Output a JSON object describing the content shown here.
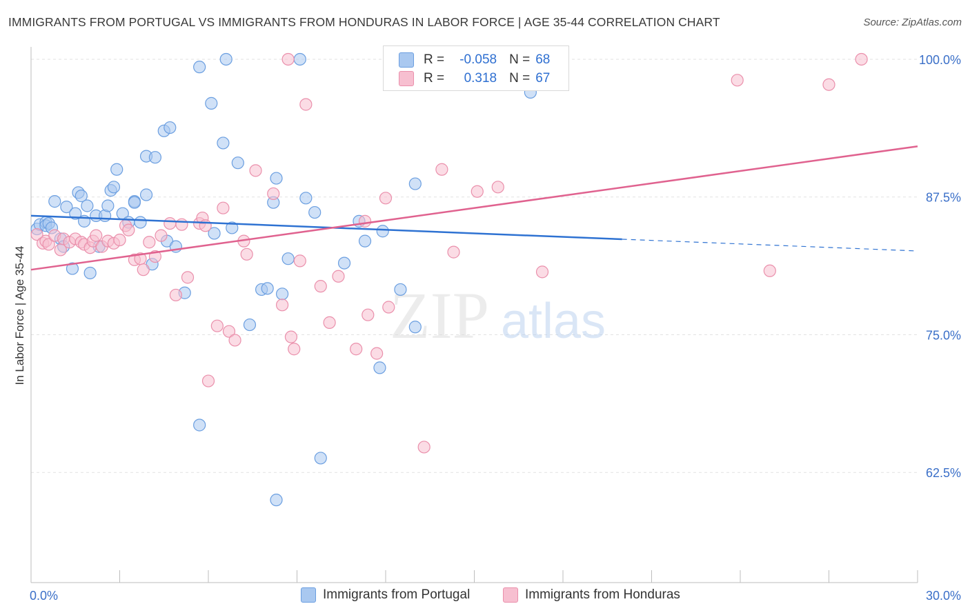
{
  "title": "IMMIGRANTS FROM PORTUGAL VS IMMIGRANTS FROM HONDURAS IN LABOR FORCE | AGE 35-44 CORRELATION CHART",
  "source": "Source: ZipAtlas.com",
  "watermark": {
    "zip": "ZIP",
    "atlas": "atlas"
  },
  "colors": {
    "portugal_fill": "#a9c8f0",
    "portugal_stroke": "#6a9ee0",
    "portugal_line": "#2e72d2",
    "honduras_fill": "#f7bfd0",
    "honduras_stroke": "#ea8fab",
    "honduras_line": "#e0628f",
    "tick_label": "#3a6fc8",
    "grid": "#e2e2e2"
  },
  "stats": {
    "r_label": "R =",
    "n_label": "N =",
    "rows": [
      {
        "r": "-0.058",
        "n": "68"
      },
      {
        "r": "0.318",
        "n": "67"
      }
    ]
  },
  "chart_data": {
    "type": "scatter",
    "ylabel": "In Labor Force | Age 35-44",
    "xlabel": "",
    "xlim": [
      0,
      30
    ],
    "ylim": [
      52.5,
      101.5
    ],
    "x_tick_labels": [
      "0.0%",
      "30.0%"
    ],
    "y_ticks": [
      100.0,
      87.5,
      75.0,
      62.5
    ],
    "y_tick_labels": [
      "100.0%",
      "87.5%",
      "75.0%",
      "62.5%"
    ],
    "grid": true,
    "legend_placement": "bottom",
    "series": [
      {
        "name": "Immigrants from Portugal",
        "points": [
          [
            0.2,
            84.6
          ],
          [
            0.3,
            85.0
          ],
          [
            0.5,
            85.2
          ],
          [
            0.5,
            84.9
          ],
          [
            0.6,
            85.1
          ],
          [
            0.7,
            84.7
          ],
          [
            0.8,
            87.1
          ],
          [
            1.0,
            83.7
          ],
          [
            1.1,
            83.0
          ],
          [
            1.2,
            86.6
          ],
          [
            1.4,
            81.0
          ],
          [
            1.5,
            86.0
          ],
          [
            1.6,
            87.9
          ],
          [
            1.7,
            87.6
          ],
          [
            1.8,
            85.3
          ],
          [
            1.9,
            86.7
          ],
          [
            2.0,
            80.6
          ],
          [
            2.2,
            85.8
          ],
          [
            2.3,
            83.0
          ],
          [
            2.5,
            85.8
          ],
          [
            2.6,
            86.7
          ],
          [
            2.7,
            88.1
          ],
          [
            2.8,
            88.4
          ],
          [
            2.9,
            90.0
          ],
          [
            3.1,
            86.0
          ],
          [
            3.3,
            85.2
          ],
          [
            3.5,
            87.1
          ],
          [
            3.5,
            87.0
          ],
          [
            3.7,
            85.2
          ],
          [
            3.9,
            87.7
          ],
          [
            3.9,
            91.2
          ],
          [
            4.1,
            81.4
          ],
          [
            4.2,
            91.1
          ],
          [
            4.5,
            93.5
          ],
          [
            4.6,
            83.5
          ],
          [
            4.7,
            93.8
          ],
          [
            4.9,
            83.0
          ],
          [
            5.2,
            78.8
          ],
          [
            5.7,
            66.8
          ],
          [
            5.7,
            99.3
          ],
          [
            6.1,
            96.0
          ],
          [
            6.2,
            84.2
          ],
          [
            6.5,
            92.4
          ],
          [
            6.6,
            100.0
          ],
          [
            6.8,
            84.7
          ],
          [
            7.0,
            90.6
          ],
          [
            7.4,
            75.9
          ],
          [
            7.8,
            79.1
          ],
          [
            8.0,
            79.2
          ],
          [
            8.2,
            87.0
          ],
          [
            8.3,
            89.2
          ],
          [
            8.3,
            60.0
          ],
          [
            8.5,
            78.7
          ],
          [
            8.7,
            81.9
          ],
          [
            9.1,
            100.0
          ],
          [
            9.3,
            87.4
          ],
          [
            9.6,
            86.1
          ],
          [
            9.8,
            63.8
          ],
          [
            10.6,
            81.5
          ],
          [
            11.1,
            85.3
          ],
          [
            11.3,
            83.5
          ],
          [
            11.8,
            72.0
          ],
          [
            11.9,
            84.4
          ],
          [
            12.5,
            79.1
          ],
          [
            13.0,
            75.7
          ],
          [
            13.0,
            88.7
          ],
          [
            14.0,
            100.0
          ],
          [
            16.9,
            97.0
          ]
        ],
        "trend": {
          "x": [
            0,
            30
          ],
          "y": [
            85.8,
            82.6
          ],
          "solid_until_x": 20.0
        }
      },
      {
        "name": "Immigrants from Honduras",
        "points": [
          [
            0.2,
            84.1
          ],
          [
            0.4,
            83.3
          ],
          [
            0.5,
            83.5
          ],
          [
            0.6,
            83.2
          ],
          [
            0.8,
            84.0
          ],
          [
            1.0,
            82.7
          ],
          [
            1.1,
            83.7
          ],
          [
            1.3,
            83.4
          ],
          [
            1.5,
            83.7
          ],
          [
            1.7,
            83.4
          ],
          [
            1.8,
            83.2
          ],
          [
            2.0,
            82.9
          ],
          [
            2.1,
            83.5
          ],
          [
            2.2,
            84.0
          ],
          [
            2.4,
            83.0
          ],
          [
            2.6,
            83.5
          ],
          [
            2.8,
            83.3
          ],
          [
            3.0,
            83.6
          ],
          [
            3.2,
            84.9
          ],
          [
            3.3,
            84.5
          ],
          [
            3.5,
            81.8
          ],
          [
            3.7,
            81.9
          ],
          [
            3.8,
            80.9
          ],
          [
            4.0,
            83.4
          ],
          [
            4.2,
            82.1
          ],
          [
            4.4,
            84.0
          ],
          [
            4.7,
            85.1
          ],
          [
            4.9,
            78.6
          ],
          [
            5.1,
            85.0
          ],
          [
            5.3,
            80.2
          ],
          [
            5.7,
            85.1
          ],
          [
            5.8,
            85.6
          ],
          [
            5.9,
            84.9
          ],
          [
            6.0,
            70.8
          ],
          [
            6.3,
            75.8
          ],
          [
            6.5,
            86.5
          ],
          [
            6.7,
            75.3
          ],
          [
            6.9,
            74.5
          ],
          [
            7.2,
            83.5
          ],
          [
            7.3,
            82.3
          ],
          [
            7.6,
            89.9
          ],
          [
            8.2,
            87.8
          ],
          [
            8.5,
            77.7
          ],
          [
            8.7,
            100.0
          ],
          [
            8.8,
            74.8
          ],
          [
            8.9,
            73.7
          ],
          [
            9.1,
            81.7
          ],
          [
            9.3,
            95.9
          ],
          [
            9.8,
            79.4
          ],
          [
            10.1,
            76.1
          ],
          [
            10.4,
            80.3
          ],
          [
            11.0,
            73.7
          ],
          [
            11.3,
            85.3
          ],
          [
            11.4,
            76.8
          ],
          [
            11.7,
            73.3
          ],
          [
            12.0,
            87.4
          ],
          [
            12.1,
            77.5
          ],
          [
            13.3,
            64.8
          ],
          [
            13.9,
            90.0
          ],
          [
            14.3,
            82.5
          ],
          [
            15.1,
            88.0
          ],
          [
            15.8,
            88.4
          ],
          [
            17.3,
            80.7
          ],
          [
            23.9,
            98.1
          ],
          [
            25.0,
            80.8
          ],
          [
            27.0,
            97.7
          ],
          [
            28.1,
            100.0
          ]
        ],
        "trend": {
          "x": [
            0,
            30
          ],
          "y": [
            80.9,
            92.1
          ]
        }
      }
    ]
  }
}
